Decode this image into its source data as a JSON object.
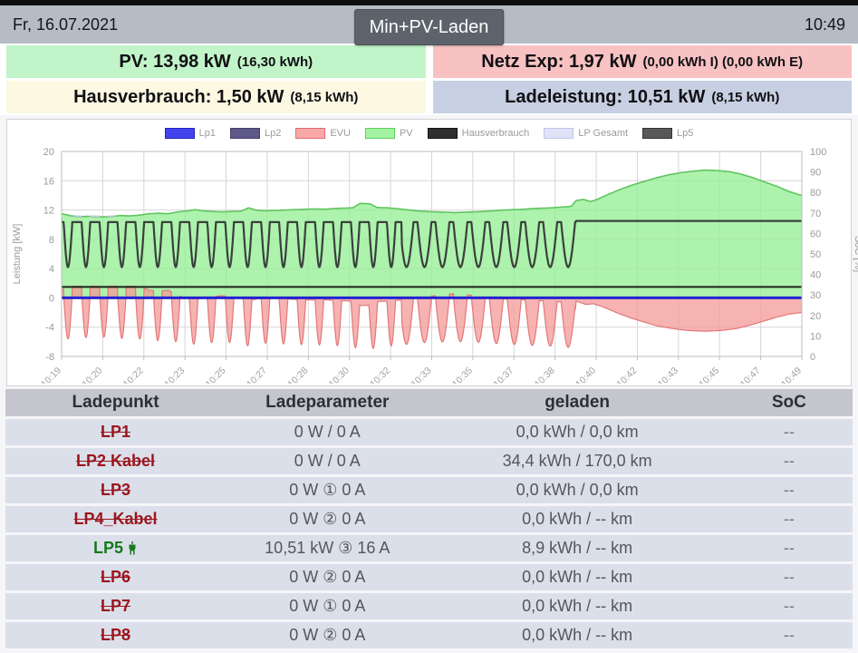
{
  "header": {
    "date": "Fr, 16.07.2021",
    "time": "10:49",
    "mode_button": "Min+PV-Laden"
  },
  "status": {
    "pv": {
      "main": "PV: 13,98 kW",
      "sub": "(16,30 kWh)",
      "bg": "#c1f4c8"
    },
    "grid": {
      "main": "Netz Exp: 1,97 kW",
      "sub": "(0,00 kWh I) (0,00 kWh E)",
      "bg": "#f8c2c2"
    },
    "house": {
      "main": "Hausverbrauch: 1,50 kW",
      "sub": "(8,15 kWh)",
      "bg": "#fcf8e2"
    },
    "charge": {
      "main": "Ladeleistung: 10,51 kW",
      "sub": "(8,15 kWh)",
      "bg": "#c7d0e2"
    }
  },
  "chart_data": {
    "type": "area",
    "title": "",
    "x_axis": {
      "labels": [
        "10:19",
        "10:20",
        "10:22",
        "10:23",
        "10:25",
        "10:27",
        "10:28",
        "10:30",
        "10:32",
        "10:33",
        "10:35",
        "10:37",
        "10:38",
        "10:40",
        "10:42",
        "10:43",
        "10:45",
        "10:47",
        "10:49"
      ],
      "total_min": 30.5
    },
    "y_left": {
      "label": "Leistung [kW]",
      "min": -8,
      "max": 20,
      "ticks": [
        20,
        16,
        12,
        8,
        4,
        0,
        -4,
        -8
      ]
    },
    "y_right": {
      "label": "SoC [%]",
      "min": 0,
      "max": 100,
      "tick_step": 10
    },
    "grid": true,
    "legend_position": "top",
    "legend": [
      {
        "name": "Lp1",
        "fill": "#4343ee",
        "border": "#2222bb"
      },
      {
        "name": "Lp2",
        "fill": "#5d5888",
        "border": "#433f6b"
      },
      {
        "name": "EVU",
        "fill": "#f9a8a8",
        "border": "#e26d6d"
      },
      {
        "name": "PV",
        "fill": "#a2f3a2",
        "border": "#5ed05e"
      },
      {
        "name": "Hausverbrauch",
        "fill": "#2f2f2f",
        "border": "#121212"
      },
      {
        "name": "LP Gesamt",
        "fill": "#e0e2f8",
        "border": "#c2c5ea"
      },
      {
        "name": "Lp5",
        "fill": "#585858",
        "border": "#333333"
      }
    ],
    "series": {
      "hausverbrauch_kw": 1.5,
      "lp1_kw": 0,
      "lp2_kw": 0,
      "lp_gesamt_offset_kw": 0.85,
      "lp5": {
        "oscillation": {
          "high_kw": 10.35,
          "low_kw": 4.2,
          "period_min": 0.74,
          "duty_high_early": 0.52,
          "duty_high_late": 0.22,
          "duty_switch_min": 14,
          "end_min": 21.18
        },
        "flat_kw": 10.51,
        "flat_end_min": 30.5
      },
      "pv_kw": [
        [
          0,
          11.5
        ],
        [
          0.4,
          11.2
        ],
        [
          0.8,
          11.1
        ],
        [
          1.2,
          11.15
        ],
        [
          1.6,
          11.05
        ],
        [
          2,
          11.1
        ],
        [
          2.4,
          11.25
        ],
        [
          2.8,
          11.2
        ],
        [
          3.2,
          11.3
        ],
        [
          3.6,
          11.5
        ],
        [
          4,
          11.55
        ],
        [
          4.4,
          11.5
        ],
        [
          4.8,
          11.75
        ],
        [
          5.2,
          11.9
        ],
        [
          5.5,
          12.05
        ],
        [
          5.8,
          11.9
        ],
        [
          6.2,
          11.8
        ],
        [
          6.6,
          11.75
        ],
        [
          7,
          11.8
        ],
        [
          7.4,
          11.85
        ],
        [
          7.7,
          12.3
        ],
        [
          8,
          12.0
        ],
        [
          8.4,
          11.9
        ],
        [
          8.8,
          11.95
        ],
        [
          9.2,
          12.0
        ],
        [
          9.6,
          12.05
        ],
        [
          10,
          12.1
        ],
        [
          10.4,
          12.15
        ],
        [
          10.8,
          12.1
        ],
        [
          11.2,
          12.2
        ],
        [
          11.6,
          12.25
        ],
        [
          12,
          12.3
        ],
        [
          12.3,
          12.9
        ],
        [
          12.7,
          12.85
        ],
        [
          13,
          12.35
        ],
        [
          13.4,
          12.3
        ],
        [
          13.8,
          12.2
        ],
        [
          14.2,
          12.05
        ],
        [
          14.6,
          11.9
        ],
        [
          15,
          11.8
        ],
        [
          15.4,
          11.75
        ],
        [
          15.8,
          11.7
        ],
        [
          16.2,
          11.65
        ],
        [
          16.6,
          11.7
        ],
        [
          17,
          11.75
        ],
        [
          17.4,
          11.8
        ],
        [
          17.8,
          11.9
        ],
        [
          18.2,
          12.0
        ],
        [
          18.6,
          12.05
        ],
        [
          19,
          12.1
        ],
        [
          19.4,
          12.2
        ],
        [
          19.8,
          12.25
        ],
        [
          20.2,
          12.3
        ],
        [
          20.6,
          12.4
        ],
        [
          21,
          12.5
        ],
        [
          21.2,
          13.3
        ],
        [
          21.5,
          13.45
        ],
        [
          21.8,
          13.15
        ],
        [
          22.1,
          13.5
        ],
        [
          22.5,
          14.1
        ],
        [
          23,
          14.8
        ],
        [
          23.5,
          15.4
        ],
        [
          24,
          15.9
        ],
        [
          24.5,
          16.4
        ],
        [
          25,
          16.8
        ],
        [
          25.5,
          17.1
        ],
        [
          26,
          17.3
        ],
        [
          26.5,
          17.45
        ],
        [
          27,
          17.4
        ],
        [
          27.5,
          17.25
        ],
        [
          28,
          16.9
        ],
        [
          28.5,
          16.4
        ],
        [
          29,
          15.8
        ],
        [
          29.5,
          15.2
        ],
        [
          30,
          14.5
        ],
        [
          30.5,
          13.98
        ]
      ],
      "evu_after_kw": [
        [
          21.18,
          -0.4
        ],
        [
          21.6,
          -0.9
        ],
        [
          21.9,
          -0.8
        ],
        [
          22.2,
          -1.1
        ],
        [
          22.5,
          -1.5
        ],
        [
          23,
          -2.2
        ],
        [
          23.5,
          -2.8
        ],
        [
          24,
          -3.3
        ],
        [
          24.5,
          -3.8
        ],
        [
          25,
          -4.1
        ],
        [
          25.5,
          -4.35
        ],
        [
          26,
          -4.5
        ],
        [
          26.6,
          -4.55
        ],
        [
          27.2,
          -4.45
        ],
        [
          27.8,
          -4.2
        ],
        [
          28.4,
          -3.7
        ],
        [
          29,
          -3.1
        ],
        [
          29.5,
          -2.6
        ],
        [
          30,
          -2.2
        ],
        [
          30.5,
          -2.0
        ]
      ],
      "current_values": {
        "pv_kw": 13.98,
        "evu_kw": -1.97,
        "haus_kw": 1.5,
        "lade_kw": 10.51
      }
    }
  },
  "table": {
    "headers": [
      "Ladepunkt",
      "Ladeparameter",
      "geladen",
      "SoC"
    ],
    "rows": [
      {
        "name": "LP1",
        "active": false,
        "plug": false,
        "params": "0 W / 0 A",
        "loaded": "0,0 kWh / 0,0 km",
        "soc": "--"
      },
      {
        "name": "LP2 Kabel",
        "active": false,
        "plug": false,
        "params": "0 W / 0 A",
        "loaded": "34,4 kWh / 170,0 km",
        "soc": "--"
      },
      {
        "name": "LP3",
        "active": false,
        "plug": false,
        "params": "0 W ① 0 A",
        "loaded": "0,0 kWh / 0,0 km",
        "soc": "--"
      },
      {
        "name": "LP4_Kabel",
        "active": false,
        "plug": false,
        "params": "0 W ② 0 A",
        "loaded": "0,0 kWh / -- km",
        "soc": "--"
      },
      {
        "name": "LP5",
        "active": true,
        "plug": true,
        "params": "10,51 kW ③ 16 A",
        "loaded": "8,9 kWh / -- km",
        "soc": "--"
      },
      {
        "name": "LP6",
        "active": false,
        "plug": false,
        "params": "0 W ② 0 A",
        "loaded": "0,0 kWh / -- km",
        "soc": "--"
      },
      {
        "name": "LP7",
        "active": false,
        "plug": false,
        "params": "0 W ① 0 A",
        "loaded": "0,0 kWh / -- km",
        "soc": "--"
      },
      {
        "name": "LP8",
        "active": false,
        "plug": false,
        "params": "0 W ② 0 A",
        "loaded": "0,0 kWh / -- km",
        "soc": "--"
      }
    ]
  }
}
